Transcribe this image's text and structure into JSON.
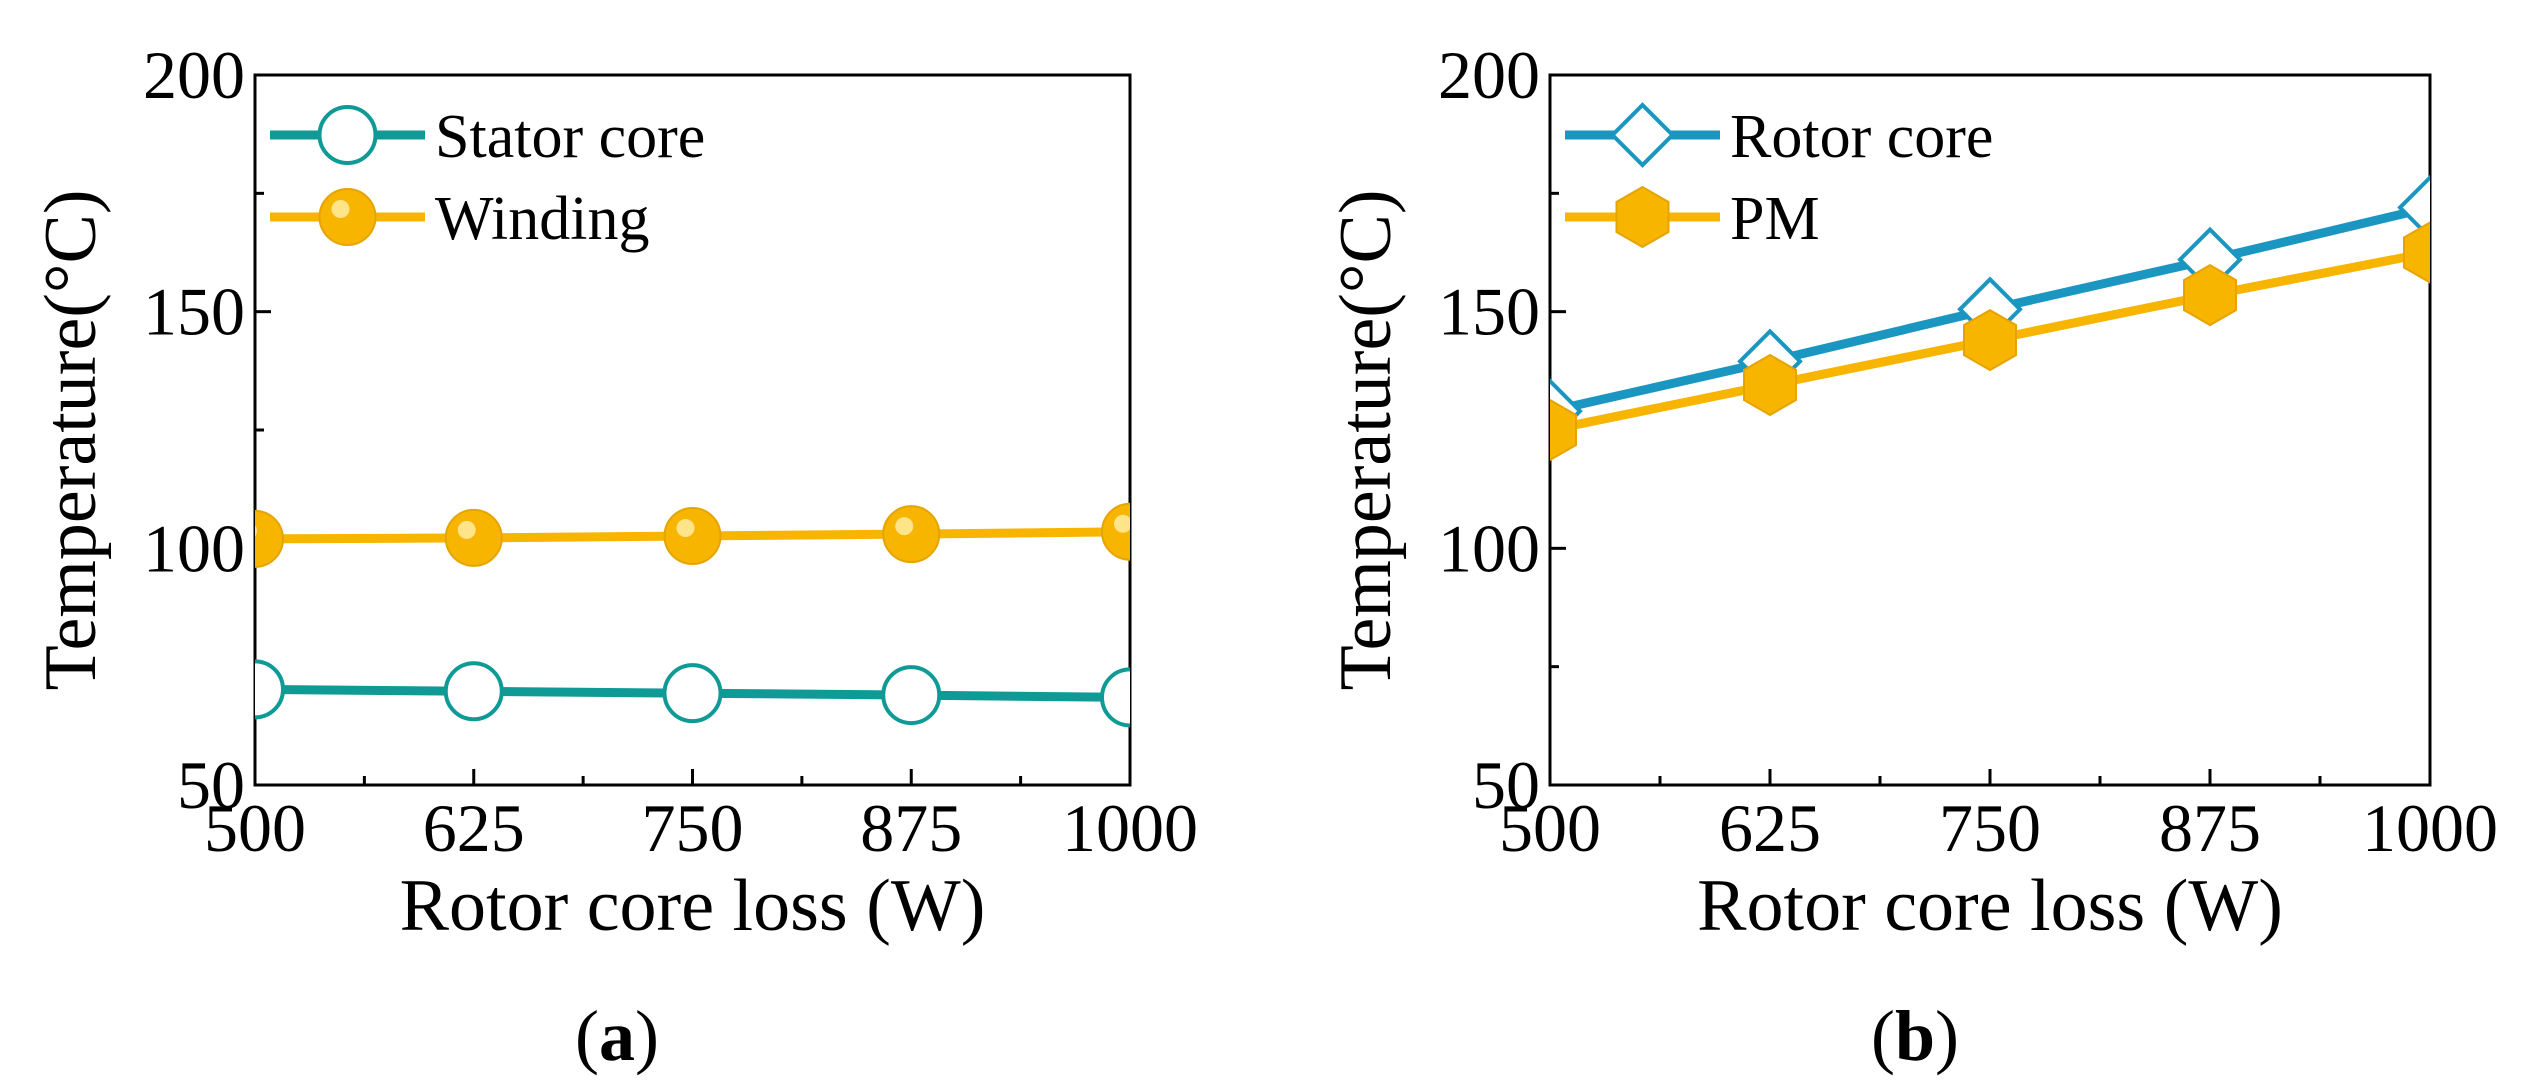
{
  "chart_data": [
    {
      "type": "line",
      "panel_label": "a",
      "x": [
        500,
        625,
        750,
        875,
        1000
      ],
      "xlabel": "Rotor core loss (W)",
      "ylabel": "Temperature(°C)",
      "xlim": [
        500,
        1000
      ],
      "ylim": [
        50,
        200
      ],
      "xticks": [
        500,
        625,
        750,
        875,
        1000
      ],
      "yticks": [
        50,
        100,
        150,
        200
      ],
      "legend": "top-left",
      "series": [
        {
          "name": "Stator core",
          "values": [
            70.2,
            69.8,
            69.4,
            69.0,
            68.5
          ],
          "color": "#0f9a96",
          "marker": "open-circle"
        },
        {
          "name": "Winding",
          "values": [
            102.0,
            102.2,
            102.6,
            103.0,
            103.5
          ],
          "color": "#f7b500",
          "marker": "filled-circle"
        }
      ]
    },
    {
      "type": "line",
      "panel_label": "b",
      "x": [
        500,
        625,
        750,
        875,
        1000
      ],
      "xlabel": "Rotor core loss (W)",
      "ylabel": "Temperature(°C)",
      "xlim": [
        500,
        1000
      ],
      "ylim": [
        50,
        200
      ],
      "xticks": [
        500,
        625,
        750,
        875,
        1000
      ],
      "yticks": [
        50,
        100,
        150,
        200
      ],
      "legend": "top-left",
      "series": [
        {
          "name": "Rotor core",
          "values": [
            129.0,
            139.5,
            150.5,
            161.0,
            172.0
          ],
          "color": "#1a96c0",
          "marker": "open-diamond"
        },
        {
          "name": "PM",
          "values": [
            125.0,
            134.5,
            144.0,
            153.5,
            162.5
          ],
          "color": "#f7b500",
          "marker": "filled-hexagon"
        }
      ]
    }
  ]
}
